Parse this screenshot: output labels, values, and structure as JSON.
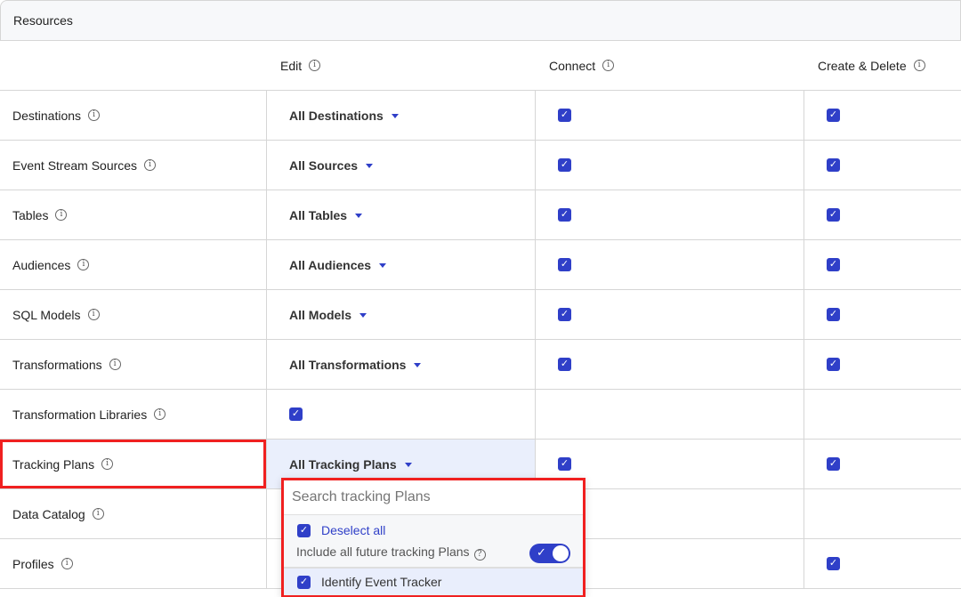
{
  "title": "Resources",
  "columns": [
    "Edit",
    "Connect",
    "Create & Delete"
  ],
  "rows": [
    {
      "name": "Destinations",
      "edit": "All Destinations",
      "connect": true,
      "create": true
    },
    {
      "name": "Event Stream Sources",
      "edit": "All Sources",
      "connect": true,
      "create": true
    },
    {
      "name": "Tables",
      "edit": "All Tables",
      "connect": true,
      "create": true
    },
    {
      "name": "Audiences",
      "edit": "All Audiences",
      "connect": true,
      "create": true
    },
    {
      "name": "SQL Models",
      "edit": "All Models",
      "connect": true,
      "create": true
    },
    {
      "name": "Transformations",
      "edit": "All Transformations",
      "connect": true,
      "create": true
    },
    {
      "name": "Transformation Libraries",
      "edit_checkbox": true
    },
    {
      "name": "Tracking Plans",
      "edit": "All Tracking Plans",
      "connect": true,
      "create": true,
      "highlighted": true
    },
    {
      "name": "Data Catalog"
    },
    {
      "name": "Profiles",
      "create": true
    }
  ],
  "dropdown": {
    "search_placeholder": "Search tracking Plans",
    "deselect_all": "Deselect all",
    "include_future": "Include all future tracking Plans",
    "include_future_on": true,
    "items": [
      {
        "label": "Identify Event Tracker",
        "checked": true
      }
    ]
  },
  "colors": {
    "accent": "#2f3fc8",
    "highlight": "#f02020"
  }
}
